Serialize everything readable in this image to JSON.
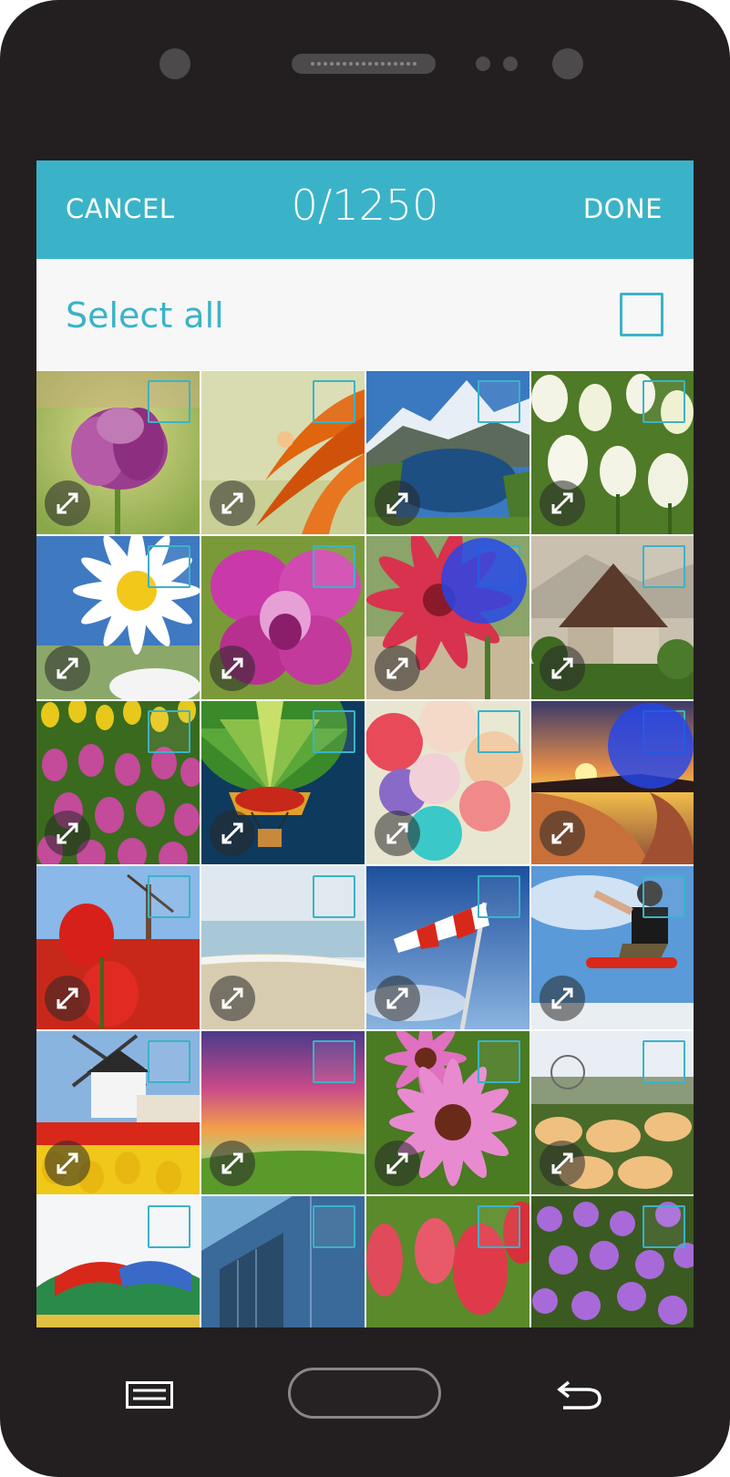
{
  "header": {
    "cancel_label": "CANCEL",
    "counter": "0/1250",
    "done_label": "DONE",
    "accent_color": "#3ab3c8"
  },
  "select_all": {
    "label": "Select all",
    "checked": false
  },
  "photos": [
    {
      "subject": "purple tulip",
      "selected": false
    },
    {
      "subject": "orange flower with droplet",
      "selected": false
    },
    {
      "subject": "mountain lake",
      "selected": false
    },
    {
      "subject": "white tulips",
      "selected": false
    },
    {
      "subject": "white daisy",
      "selected": false
    },
    {
      "subject": "pink orchid",
      "selected": false
    },
    {
      "subject": "red gerbera",
      "selected": false
    },
    {
      "subject": "stone tower house",
      "selected": false
    },
    {
      "subject": "tulip field",
      "selected": false
    },
    {
      "subject": "hot air balloon",
      "selected": false
    },
    {
      "subject": "balloons",
      "selected": false
    },
    {
      "subject": "sunset over bay",
      "selected": false
    },
    {
      "subject": "red tulips and windmill",
      "selected": false
    },
    {
      "subject": "beach footprints",
      "selected": false
    },
    {
      "subject": "windsock",
      "selected": false
    },
    {
      "subject": "skateboarder",
      "selected": false
    },
    {
      "subject": "windmill with tulips",
      "selected": false
    },
    {
      "subject": "colorful sunset",
      "selected": false
    },
    {
      "subject": "pink coneflowers",
      "selected": false
    },
    {
      "subject": "lilies",
      "selected": false
    },
    {
      "subject": "dragon boat",
      "selected": false
    },
    {
      "subject": "glass building",
      "selected": false
    },
    {
      "subject": "red tulips",
      "selected": false
    },
    {
      "subject": "purple flowers",
      "selected": false
    }
  ],
  "icons": {
    "expand": "expand-icon",
    "menu": "menu-icon",
    "home": "home-button",
    "back": "back-icon"
  }
}
